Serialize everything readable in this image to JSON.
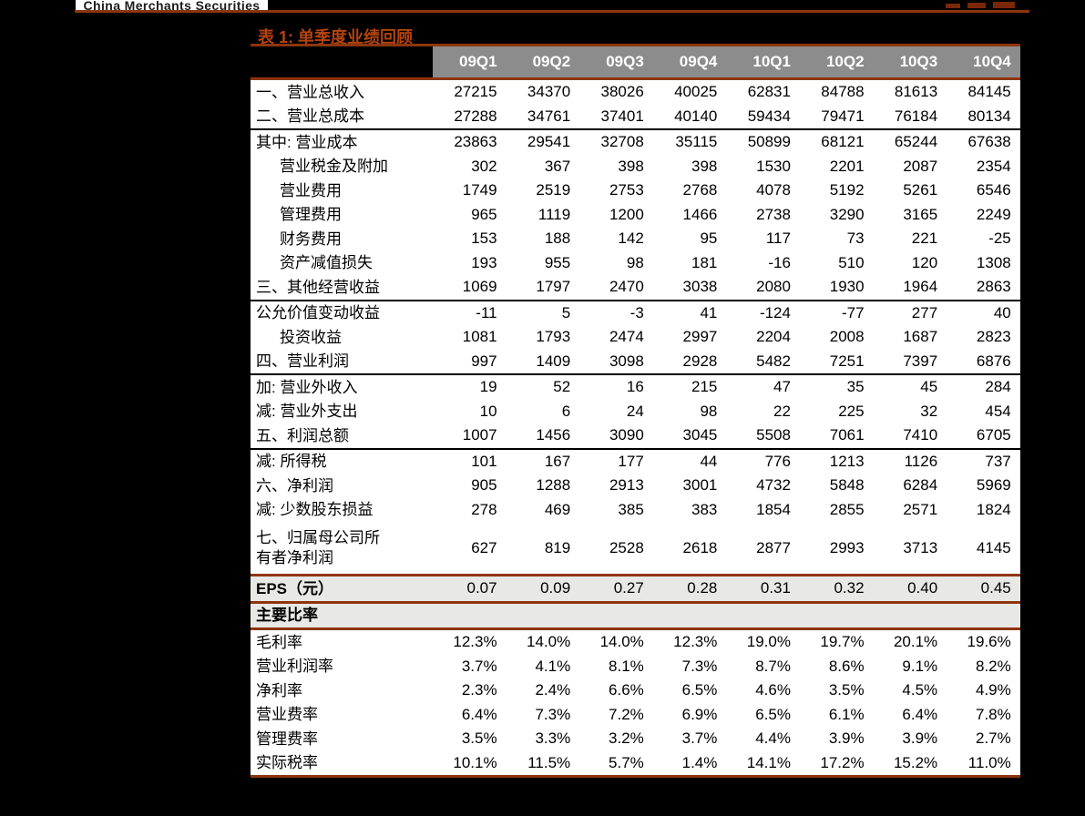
{
  "page": {
    "background": "#000000",
    "logo_text": "China Merchants Securities"
  },
  "colors": {
    "rule_red": "#8E350D",
    "title_red": "#B2430E",
    "header_gray": "#8C8C8C",
    "shaded_row": "#E8E8E6",
    "text_black": "#000000"
  },
  "table": {
    "title": "表 1: 单季度业绩回顾",
    "columns": [
      "09Q1",
      "09Q2",
      "09Q3",
      "09Q4",
      "10Q1",
      "10Q2",
      "10Q3",
      "10Q4"
    ],
    "rows": [
      {
        "label": "一、营业总收入",
        "values": [
          "27215",
          "34370",
          "38026",
          "40025",
          "62831",
          "84788",
          "81613",
          "84145"
        ]
      },
      {
        "label": "二、营业总成本",
        "border": "black",
        "values": [
          "27288",
          "34761",
          "37401",
          "40140",
          "59434",
          "79471",
          "76184",
          "80134"
        ]
      },
      {
        "label": "其中: 营业成本",
        "values": [
          "23863",
          "29541",
          "32708",
          "35115",
          "50899",
          "68121",
          "65244",
          "67638"
        ]
      },
      {
        "label": "营业税金及附加",
        "indent": true,
        "values": [
          "302",
          "367",
          "398",
          "398",
          "1530",
          "2201",
          "2087",
          "2354"
        ]
      },
      {
        "label": "营业费用",
        "indent": true,
        "values": [
          "1749",
          "2519",
          "2753",
          "2768",
          "4078",
          "5192",
          "5261",
          "6546"
        ]
      },
      {
        "label": "管理费用",
        "indent": true,
        "values": [
          "965",
          "1119",
          "1200",
          "1466",
          "2738",
          "3290",
          "3165",
          "2249"
        ]
      },
      {
        "label": "财务费用",
        "indent": true,
        "values": [
          "153",
          "188",
          "142",
          "95",
          "117",
          "73",
          "221",
          "-25"
        ]
      },
      {
        "label": "资产减值损失",
        "indent": true,
        "values": [
          "193",
          "955",
          "98",
          "181",
          "-16",
          "510",
          "120",
          "1308"
        ]
      },
      {
        "label": "三、其他经营收益",
        "border": "black",
        "values": [
          "1069",
          "1797",
          "2470",
          "3038",
          "2080",
          "1930",
          "1964",
          "2863"
        ]
      },
      {
        "label": "公允价值变动收益",
        "values": [
          "-11",
          "5",
          "-3",
          "41",
          "-124",
          "-77",
          "277",
          "40"
        ]
      },
      {
        "label": "投资收益",
        "indent": true,
        "values": [
          "1081",
          "1793",
          "2474",
          "2997",
          "2204",
          "2008",
          "1687",
          "2823"
        ]
      },
      {
        "label": "四、营业利润",
        "border": "black",
        "values": [
          "997",
          "1409",
          "3098",
          "2928",
          "5482",
          "7251",
          "7397",
          "6876"
        ]
      },
      {
        "label": "加: 营业外收入",
        "values": [
          "19",
          "52",
          "16",
          "215",
          "47",
          "35",
          "45",
          "284"
        ]
      },
      {
        "label": "减: 营业外支出",
        "values": [
          "10",
          "6",
          "24",
          "98",
          "22",
          "225",
          "32",
          "454"
        ]
      },
      {
        "label": "五、利润总额",
        "border": "black",
        "values": [
          "1007",
          "1456",
          "3090",
          "3045",
          "5508",
          "7061",
          "7410",
          "6705"
        ]
      },
      {
        "label": "减: 所得税",
        "values": [
          "101",
          "167",
          "177",
          "44",
          "776",
          "1213",
          "1126",
          "737"
        ]
      },
      {
        "label": "六、净利润",
        "values": [
          "905",
          "1288",
          "2913",
          "3001",
          "4732",
          "5848",
          "6284",
          "5969"
        ]
      },
      {
        "label": "减: 少数股东损益",
        "values": [
          "278",
          "469",
          "385",
          "383",
          "1854",
          "2855",
          "2571",
          "1824"
        ]
      },
      {
        "label": "七、归属母公司所有者净利润",
        "tall": true,
        "border": "red",
        "values": [
          "627",
          "819",
          "2528",
          "2618",
          "2877",
          "2993",
          "3713",
          "4145"
        ]
      },
      {
        "label": "EPS（元）",
        "shaded": true,
        "border": "red",
        "values": [
          "0.07",
          "0.09",
          "0.27",
          "0.28",
          "0.31",
          "0.32",
          "0.40",
          "0.45"
        ]
      },
      {
        "label": "主要比率",
        "shaded": true,
        "border": "red",
        "values": [
          "",
          "",
          "",
          "",
          "",
          "",
          "",
          ""
        ]
      },
      {
        "label": "毛利率",
        "values": [
          "12.3%",
          "14.0%",
          "14.0%",
          "12.3%",
          "19.0%",
          "19.7%",
          "20.1%",
          "19.6%"
        ]
      },
      {
        "label": "营业利润率",
        "values": [
          "3.7%",
          "4.1%",
          "8.1%",
          "7.3%",
          "8.7%",
          "8.6%",
          "9.1%",
          "8.2%"
        ]
      },
      {
        "label": "净利率",
        "values": [
          "2.3%",
          "2.4%",
          "6.6%",
          "6.5%",
          "4.6%",
          "3.5%",
          "4.5%",
          "4.9%"
        ]
      },
      {
        "label": "营业费率",
        "values": [
          "6.4%",
          "7.3%",
          "7.2%",
          "6.9%",
          "6.5%",
          "6.1%",
          "6.4%",
          "7.8%"
        ]
      },
      {
        "label": "管理费率",
        "values": [
          "3.5%",
          "3.3%",
          "3.2%",
          "3.7%",
          "4.4%",
          "3.9%",
          "3.9%",
          "2.7%"
        ]
      },
      {
        "label": "实际税率",
        "border": "red",
        "values": [
          "10.1%",
          "11.5%",
          "5.7%",
          "1.4%",
          "14.1%",
          "17.2%",
          "15.2%",
          "11.0%"
        ]
      }
    ]
  }
}
